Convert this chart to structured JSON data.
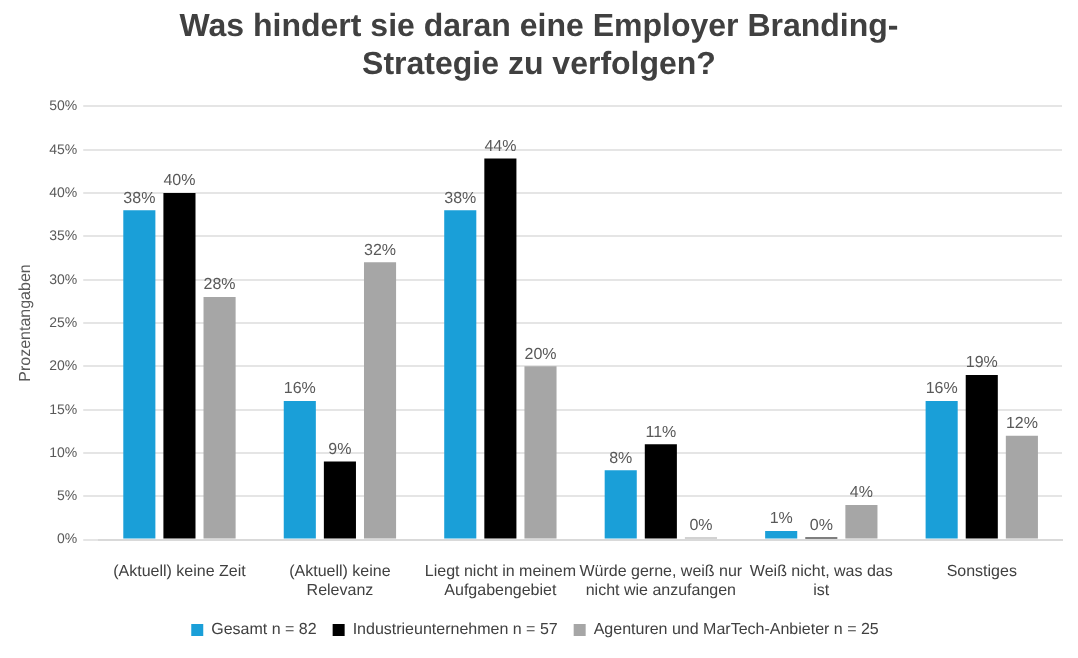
{
  "chart_data": {
    "type": "bar",
    "title": "Was hindert sie daran eine Employer Branding-Strategie zu verfolgen?",
    "ylabel": "Prozentangaben",
    "categories": [
      "(Aktuell) keine Zeit",
      "(Aktuell) keine Relevanz",
      "Liegt nicht in meinem Aufgabengebiet",
      "Würde gerne, weiß nur nicht wie anzufangen",
      "Weiß nicht, was das ist",
      "Sonstiges"
    ],
    "series": [
      {
        "name": "Gesamt n = 82",
        "color": "#1a9fd8",
        "values": [
          38,
          16,
          38,
          8,
          1,
          16
        ],
        "value_labels": [
          "38%",
          "16%",
          "38%",
          "8%",
          "1%",
          "16%"
        ]
      },
      {
        "name": "Industrieunternehmen n = 57",
        "color": "#000000",
        "values": [
          40,
          9,
          44,
          11,
          0,
          19
        ],
        "value_labels": [
          "40%",
          "9%",
          "44%",
          "11%",
          "0%",
          "19%"
        ]
      },
      {
        "name": "Agenturen und MarTech-Anbieter n = 25",
        "color": "#a6a6a6",
        "values": [
          28,
          32,
          20,
          0,
          4,
          12
        ],
        "value_labels": [
          "28%",
          "32%",
          "20%",
          "0%",
          "4%",
          "12%"
        ]
      }
    ],
    "ylim": [
      0,
      50
    ],
    "yticks": [
      {
        "value": 0,
        "label": "0%"
      },
      {
        "value": 5,
        "label": "5%"
      },
      {
        "value": 10,
        "label": "10%"
      },
      {
        "value": 15,
        "label": "15%"
      },
      {
        "value": 20,
        "label": "20%"
      },
      {
        "value": 25,
        "label": "25%"
      },
      {
        "value": 30,
        "label": "30%"
      },
      {
        "value": 35,
        "label": "35%"
      },
      {
        "value": 40,
        "label": "40%"
      },
      {
        "value": 45,
        "label": "45%"
      },
      {
        "value": 50,
        "label": "50%"
      }
    ],
    "grid": "y",
    "legend": "bottom"
  }
}
